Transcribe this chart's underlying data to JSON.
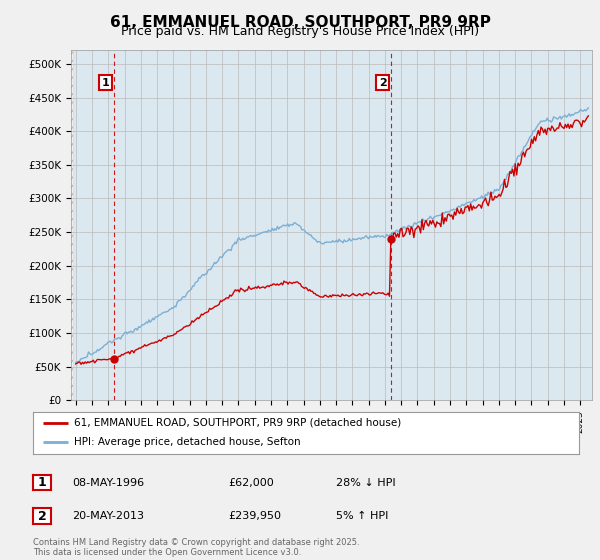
{
  "title": "61, EMMANUEL ROAD, SOUTHPORT, PR9 9RP",
  "subtitle": "Price paid vs. HM Land Registry's House Price Index (HPI)",
  "xlim_start": 1993.7,
  "xlim_end": 2025.7,
  "ylim": [
    0,
    520000
  ],
  "yticks": [
    0,
    50000,
    100000,
    150000,
    200000,
    250000,
    300000,
    350000,
    400000,
    450000,
    500000
  ],
  "ytick_labels": [
    "£0",
    "£50K",
    "£100K",
    "£150K",
    "£200K",
    "£250K",
    "£300K",
    "£350K",
    "£400K",
    "£450K",
    "£500K"
  ],
  "sale1_x": 1996.35,
  "sale1_y": 62000,
  "sale2_x": 2013.37,
  "sale2_y": 239950,
  "vline1_x": 1996.35,
  "vline2_x": 2013.37,
  "legend_line1": "61, EMMANUEL ROAD, SOUTHPORT, PR9 9RP (detached house)",
  "legend_line2": "HPI: Average price, detached house, Sefton",
  "table_data": [
    [
      "1",
      "08-MAY-1996",
      "£62,000",
      "28% ↓ HPI"
    ],
    [
      "2",
      "20-MAY-2013",
      "£239,950",
      "5% ↑ HPI"
    ]
  ],
  "footer": "Contains HM Land Registry data © Crown copyright and database right 2025.\nThis data is licensed under the Open Government Licence v3.0.",
  "hpi_color": "#7bafd4",
  "price_color": "#cc0000",
  "vline_color": "#cc0000",
  "plot_bg_color": "#dce8f0",
  "background_color": "#f0f0f0",
  "title_fontsize": 11,
  "subtitle_fontsize": 9
}
